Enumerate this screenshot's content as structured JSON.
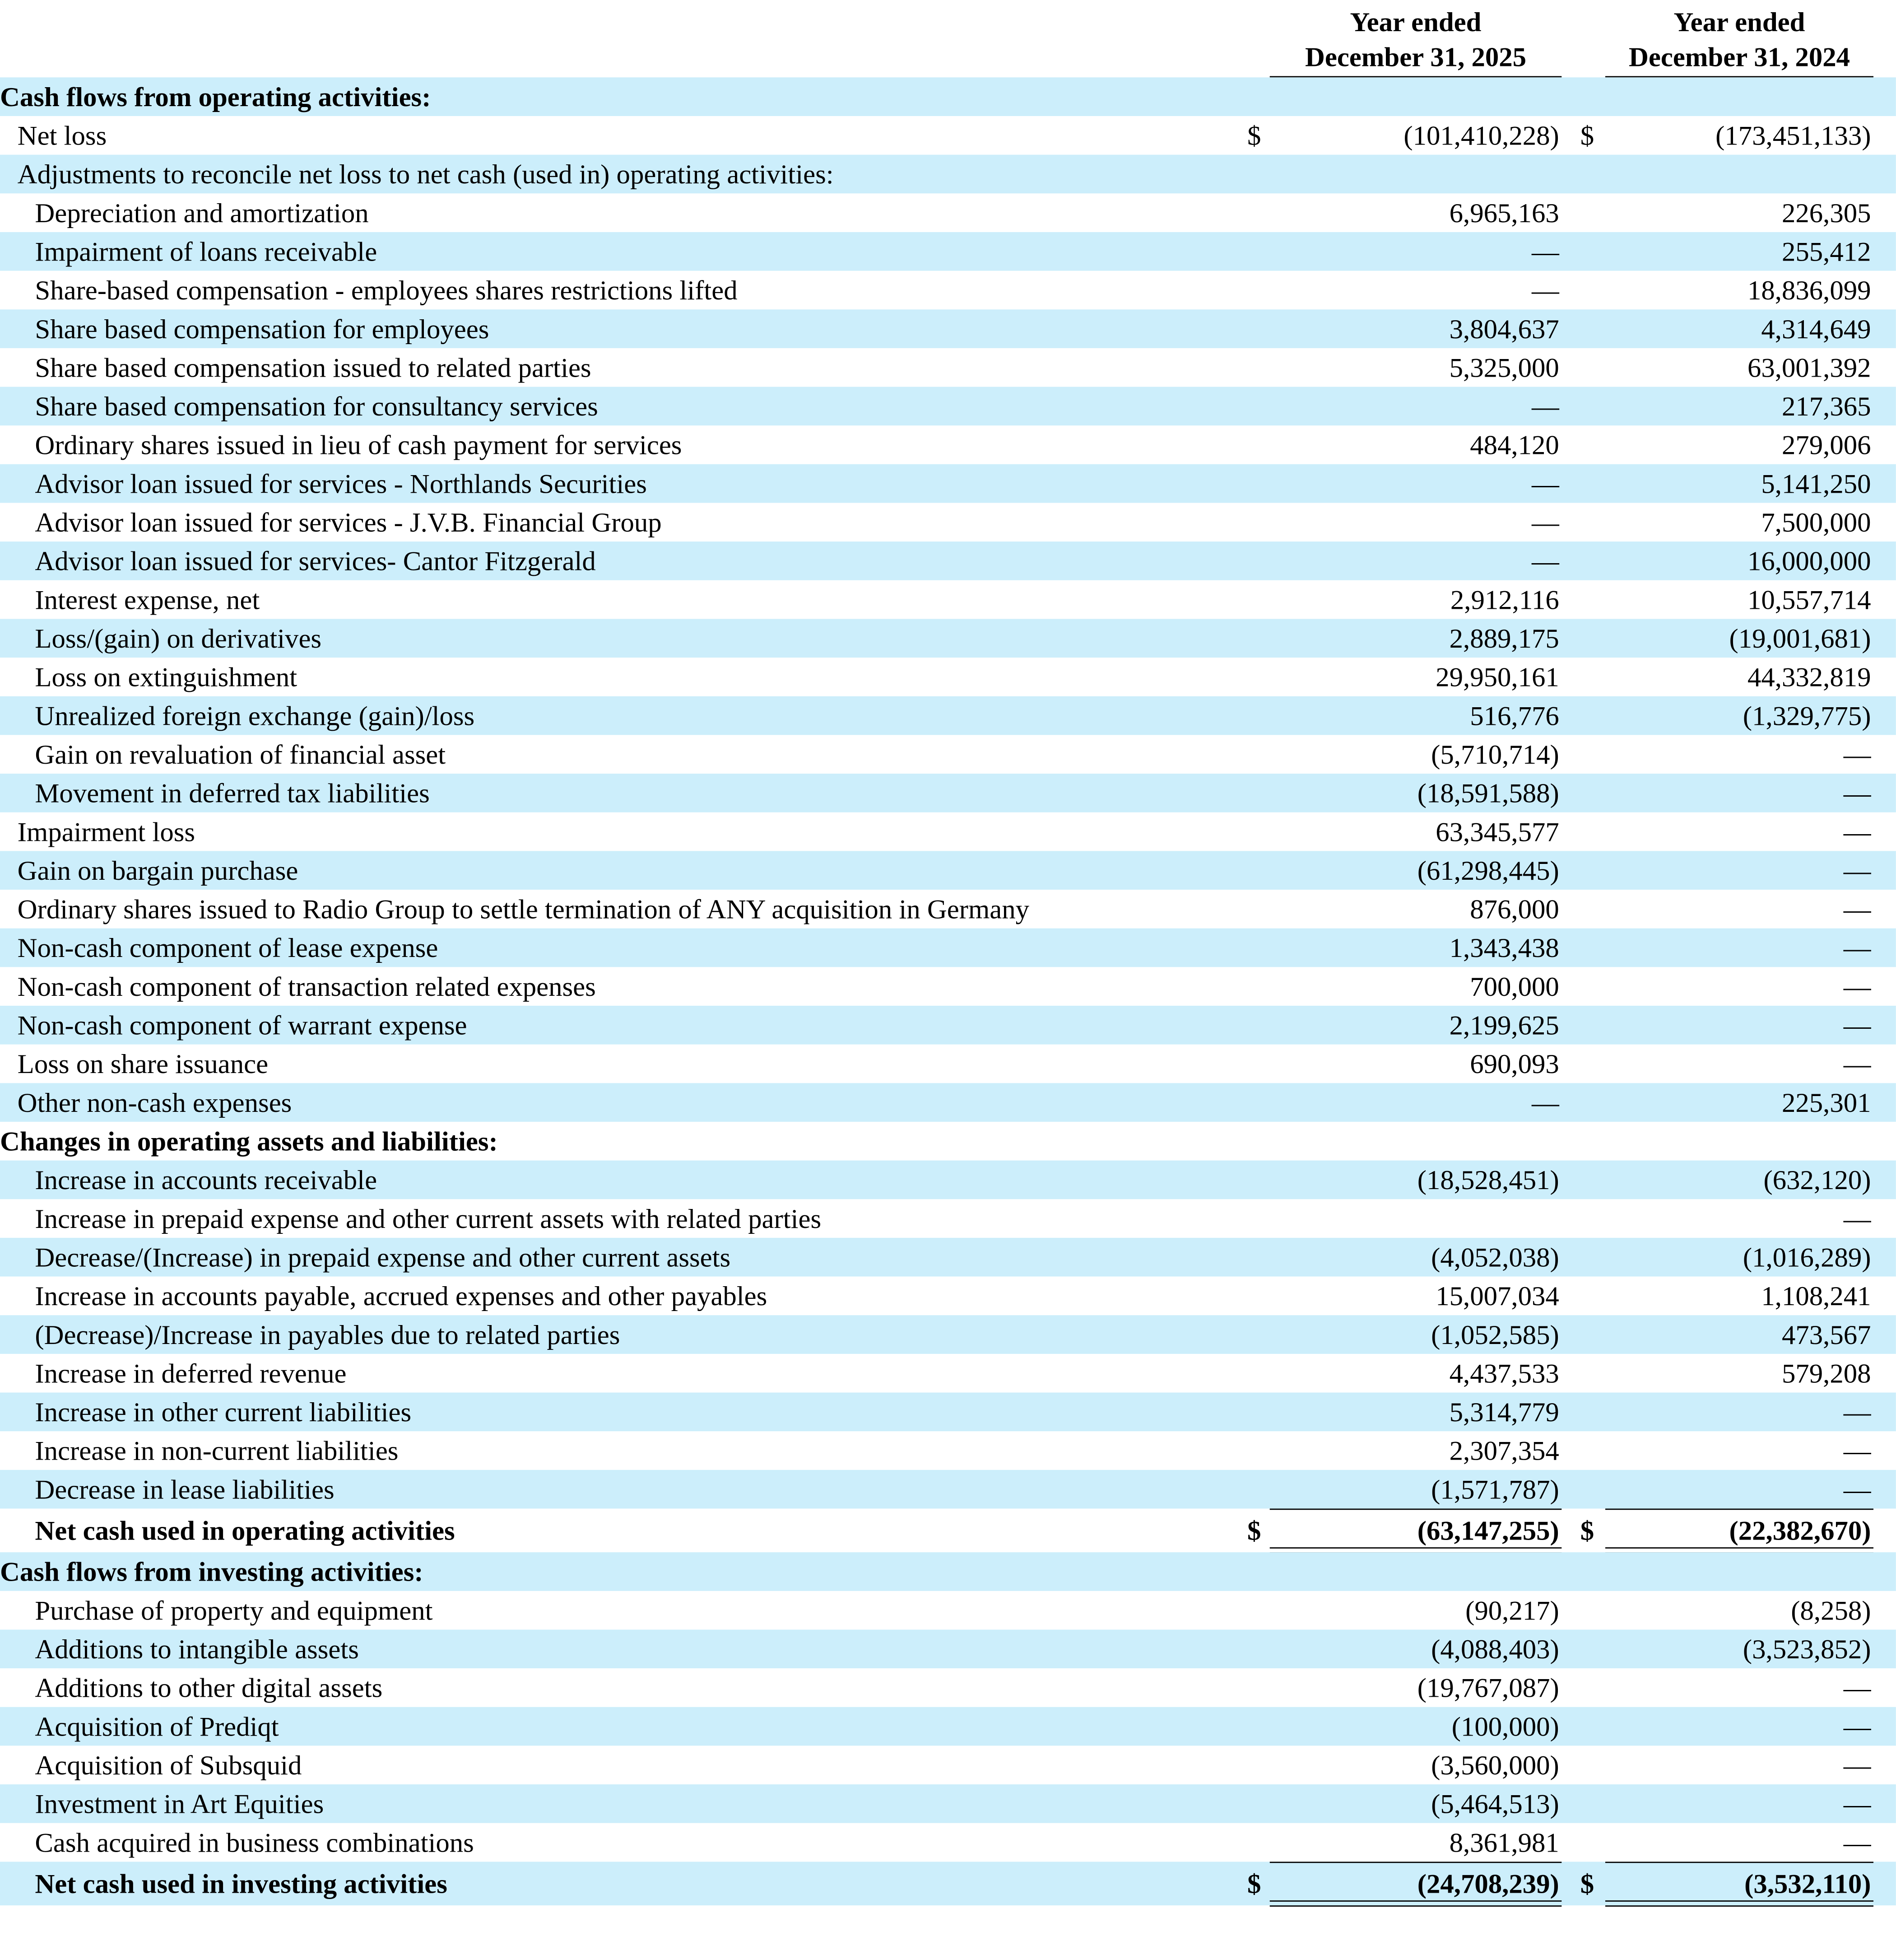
{
  "header": {
    "columns": [
      [
        "Year ended",
        "December 31, 2025"
      ],
      [
        "Year ended",
        "December 31, 2024"
      ]
    ]
  },
  "rows": [
    {
      "label": "Cash flows from operating activities:",
      "indent": 0,
      "bold": true
    },
    {
      "label": "Net loss",
      "indent": 1,
      "dollar": [
        "$",
        "$"
      ],
      "values": [
        "(101,410,228)",
        "(173,451,133)"
      ]
    },
    {
      "label": "Adjustments to reconcile net loss to net cash (used in) operating activities:",
      "indent": 1
    },
    {
      "label": "Depreciation and amortization",
      "indent": 2,
      "values": [
        "6,965,163",
        "226,305"
      ]
    },
    {
      "label": "Impairment of loans receivable",
      "indent": 2,
      "values": [
        "—",
        "255,412"
      ]
    },
    {
      "label": "Share-based compensation - employees shares restrictions lifted",
      "indent": 2,
      "values": [
        "—",
        "18,836,099"
      ]
    },
    {
      "label": "Share based compensation for employees",
      "indent": 2,
      "values": [
        "3,804,637",
        "4,314,649"
      ]
    },
    {
      "label": "Share based compensation issued to related parties",
      "indent": 2,
      "values": [
        "5,325,000",
        "63,001,392"
      ]
    },
    {
      "label": "Share based compensation for consultancy services",
      "indent": 2,
      "values": [
        "—",
        "217,365"
      ]
    },
    {
      "label": "Ordinary shares issued in lieu of cash payment for services",
      "indent": 2,
      "values": [
        "484,120",
        "279,006"
      ]
    },
    {
      "label": "Advisor loan issued for services - Northlands Securities",
      "indent": 2,
      "values": [
        "—",
        "5,141,250"
      ]
    },
    {
      "label": "Advisor loan issued for services - J.V.B. Financial Group",
      "indent": 2,
      "values": [
        "—",
        "7,500,000"
      ]
    },
    {
      "label": "Advisor loan issued for services- Cantor Fitzgerald",
      "indent": 2,
      "values": [
        "—",
        "16,000,000"
      ]
    },
    {
      "label": "Interest expense, net",
      "indent": 2,
      "values": [
        "2,912,116",
        "10,557,714"
      ]
    },
    {
      "label": "Loss/(gain) on derivatives",
      "indent": 2,
      "values": [
        "2,889,175",
        "(19,001,681)"
      ]
    },
    {
      "label": "Loss on extinguishment",
      "indent": 2,
      "values": [
        "29,950,161",
        "44,332,819"
      ]
    },
    {
      "label": "Unrealized foreign exchange (gain)/loss",
      "indent": 2,
      "values": [
        "516,776",
        "(1,329,775)"
      ]
    },
    {
      "label": "Gain on revaluation of financial asset",
      "indent": 2,
      "values": [
        "(5,710,714)",
        "—"
      ]
    },
    {
      "label": "Movement in deferred tax liabilities",
      "indent": 2,
      "values": [
        "(18,591,588)",
        "—"
      ]
    },
    {
      "label": "Impairment loss",
      "indent": 1,
      "values": [
        "63,345,577",
        "—"
      ]
    },
    {
      "label": "Gain on bargain purchase",
      "indent": 1,
      "values": [
        "(61,298,445)",
        "—"
      ]
    },
    {
      "label": "Ordinary shares issued to Radio Group to settle termination of ANY acquisition in Germany",
      "indent": 1,
      "values": [
        "876,000",
        "—"
      ]
    },
    {
      "label": "Non-cash component of lease expense",
      "indent": 1,
      "values": [
        "1,343,438",
        "—"
      ]
    },
    {
      "label": "Non-cash component of transaction related expenses",
      "indent": 1,
      "values": [
        "700,000",
        "—"
      ]
    },
    {
      "label": "Non-cash component of warrant expense",
      "indent": 1,
      "values": [
        "2,199,625",
        "—"
      ]
    },
    {
      "label": "Loss on share issuance",
      "indent": 1,
      "values": [
        "690,093",
        "—"
      ]
    },
    {
      "label": "Other non-cash expenses",
      "indent": 1,
      "values": [
        "—",
        "225,301"
      ]
    },
    {
      "label": "Changes in operating assets and liabilities:",
      "indent": 0,
      "bold": true
    },
    {
      "label": "Increase in accounts receivable",
      "indent": 2,
      "values": [
        "(18,528,451)",
        "(632,120)"
      ]
    },
    {
      "label": "Increase in prepaid expense and other current assets with related parties",
      "indent": 2,
      "values": [
        "",
        "—"
      ]
    },
    {
      "label": "Decrease/(Increase) in prepaid expense and other current assets",
      "indent": 2,
      "values": [
        "(4,052,038)",
        "(1,016,289)"
      ]
    },
    {
      "label": "Increase in accounts payable, accrued expenses and other payables",
      "indent": 2,
      "values": [
        "15,007,034",
        "1,108,241"
      ]
    },
    {
      "label": "(Decrease)/Increase in payables due to related parties",
      "indent": 2,
      "values": [
        "(1,052,585)",
        "473,567"
      ]
    },
    {
      "label": "Increase in deferred revenue",
      "indent": 2,
      "values": [
        "4,437,533",
        "579,208"
      ]
    },
    {
      "label": "Increase in other current liabilities",
      "indent": 2,
      "values": [
        "5,314,779",
        "—"
      ]
    },
    {
      "label": "Increase in non-current liabilities",
      "indent": 2,
      "values": [
        "2,307,354",
        "—"
      ]
    },
    {
      "label": "Decrease in lease liabilities",
      "indent": 2,
      "values": [
        "(1,571,787)",
        "—"
      ]
    },
    {
      "label": "Net cash used in operating activities",
      "indent": 2,
      "bold": true,
      "total": true,
      "dollar": [
        "$",
        "$"
      ],
      "values": [
        "(63,147,255)",
        "(22,382,670)"
      ]
    },
    {
      "label": "Cash flows from investing activities:",
      "indent": 0,
      "bold": true
    },
    {
      "label": "Purchase of property and equipment",
      "indent": 2,
      "values": [
        "(90,217)",
        "(8,258)"
      ]
    },
    {
      "label": "Additions to intangible assets",
      "indent": 2,
      "values": [
        "(4,088,403)",
        "(3,523,852)"
      ]
    },
    {
      "label": "Additions to other digital assets",
      "indent": 2,
      "values": [
        "(19,767,087)",
        "—"
      ]
    },
    {
      "label": "Acquisition of Prediqt",
      "indent": 2,
      "values": [
        "(100,000)",
        "—"
      ]
    },
    {
      "label": "Acquisition of Subsquid",
      "indent": 2,
      "values": [
        "(3,560,000)",
        "—"
      ]
    },
    {
      "label": "Investment in Art Equities",
      "indent": 2,
      "values": [
        "(5,464,513)",
        "—"
      ]
    },
    {
      "label": "Cash acquired in business combinations",
      "indent": 2,
      "values": [
        "8,361,981",
        "—"
      ]
    },
    {
      "label": "Net cash used in investing activities",
      "indent": 2,
      "bold": true,
      "total": true,
      "dollar": [
        "$",
        "$"
      ],
      "values": [
        "(24,708,239)",
        "(3,532,110)"
      ]
    }
  ]
}
